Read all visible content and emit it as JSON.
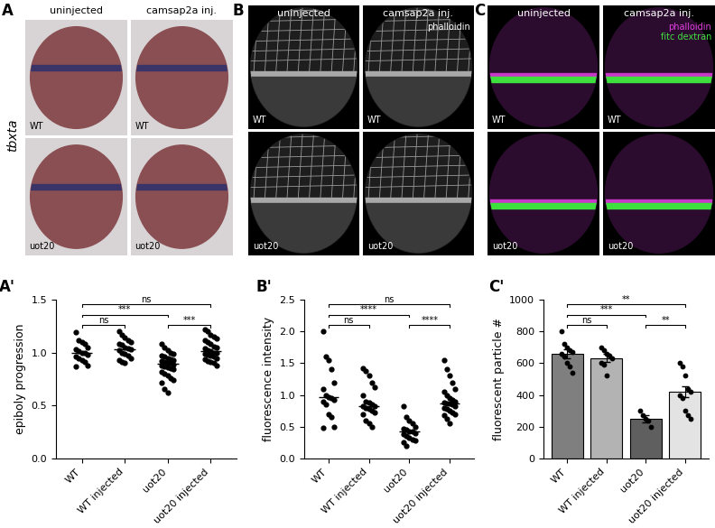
{
  "image_panels": [
    {
      "label": "A",
      "side_label": "tbxta",
      "column_titles": [
        "uninjected",
        "camsap2a inj."
      ],
      "row_labels": [
        "WT",
        "uot20"
      ]
    },
    {
      "label": "B",
      "column_titles": [
        "uninjected",
        "camsap2a inj."
      ],
      "row_labels": [
        "WT",
        "uot20"
      ],
      "stain_labels": [
        {
          "text": "phalloidin",
          "color": "#ffffff"
        }
      ]
    },
    {
      "label": "C",
      "column_titles": [
        "uninjected",
        "camsap2a inj."
      ],
      "row_labels": [
        "WT",
        "uot20"
      ],
      "stain_labels": [
        {
          "text": "phalloidin",
          "color": "#e040e0"
        },
        {
          "text": "fitc dextran",
          "color": "#40e040"
        }
      ]
    }
  ],
  "chart_data": [
    {
      "type": "strip",
      "panel": "A'",
      "y_label": "epiboly progression",
      "categories": [
        "WT",
        "WT injected",
        "uot20",
        "uot20 injected"
      ],
      "color": "#000000",
      "points": [
        [
          1.19,
          1.12,
          1.1,
          1.08,
          1.05,
          1.03,
          1.01,
          1.0,
          1.0,
          0.98,
          0.96,
          0.95,
          0.93,
          0.91,
          0.88,
          0.87
        ],
        [
          1.2,
          1.17,
          1.14,
          1.12,
          1.1,
          1.08,
          1.07,
          1.05,
          1.04,
          1.03,
          1.02,
          1.0,
          0.99,
          0.97,
          0.95,
          0.93,
          0.91,
          0.9
        ],
        [
          1.08,
          1.05,
          1.02,
          1.0,
          0.99,
          0.97,
          0.96,
          0.95,
          0.94,
          0.93,
          0.92,
          0.91,
          0.9,
          0.9,
          0.89,
          0.88,
          0.87,
          0.86,
          0.85,
          0.84,
          0.82,
          0.8,
          0.78,
          0.76,
          0.74,
          0.72,
          0.66,
          0.62
        ],
        [
          1.22,
          1.2,
          1.17,
          1.15,
          1.13,
          1.12,
          1.1,
          1.08,
          1.06,
          1.05,
          1.04,
          1.02,
          1.01,
          1.0,
          1.0,
          0.99,
          0.98,
          0.97,
          0.96,
          0.95,
          0.94,
          0.92,
          0.91,
          0.9,
          0.88
        ]
      ],
      "ylim": [
        0.0,
        1.5
      ],
      "yticks": [
        0.0,
        0.5,
        1.0,
        1.5
      ],
      "comparisons": [
        {
          "groups": [
            "WT",
            "WT injected"
          ],
          "label": "ns"
        },
        {
          "groups": [
            "uot20",
            "uot20 injected"
          ],
          "label": "***"
        },
        {
          "groups": [
            "WT",
            "uot20"
          ],
          "label": "***"
        },
        {
          "groups": [
            "WT",
            "uot20 injected"
          ],
          "label": "ns"
        }
      ]
    },
    {
      "type": "strip",
      "panel": "B'",
      "y_label": "fluorescence intensity",
      "categories": [
        "WT",
        "WT injected",
        "uot20",
        "uot20 injected"
      ],
      "color": "#000000",
      "points": [
        [
          2.0,
          1.6,
          1.55,
          1.4,
          1.2,
          1.1,
          1.0,
          0.97,
          0.95,
          0.93,
          0.9,
          0.85,
          0.7,
          0.65,
          0.5,
          0.48
        ],
        [
          1.42,
          1.38,
          1.3,
          1.2,
          1.12,
          1.0,
          0.9,
          0.88,
          0.85,
          0.83,
          0.82,
          0.8,
          0.78,
          0.75,
          0.72,
          0.7,
          0.6,
          0.55,
          0.5
        ],
        [
          0.82,
          0.65,
          0.6,
          0.55,
          0.5,
          0.47,
          0.45,
          0.43,
          0.42,
          0.4,
          0.38,
          0.36,
          0.33,
          0.3,
          0.28,
          0.25,
          0.2
        ],
        [
          1.55,
          1.4,
          1.3,
          1.2,
          1.1,
          1.05,
          1.0,
          0.95,
          0.92,
          0.9,
          0.88,
          0.87,
          0.86,
          0.85,
          0.82,
          0.8,
          0.78,
          0.75,
          0.72,
          0.7,
          0.68,
          0.62,
          0.55
        ]
      ],
      "ylim": [
        0.0,
        2.5
      ],
      "yticks": [
        0.0,
        0.5,
        1.0,
        1.5,
        2.0,
        2.5
      ],
      "comparisons": [
        {
          "groups": [
            "WT",
            "WT injected"
          ],
          "label": "ns"
        },
        {
          "groups": [
            "uot20",
            "uot20 injected"
          ],
          "label": "****"
        },
        {
          "groups": [
            "WT",
            "uot20"
          ],
          "label": "****"
        },
        {
          "groups": [
            "WT",
            "uot20 injected"
          ],
          "label": "ns"
        }
      ]
    },
    {
      "type": "bar",
      "panel": "C'",
      "y_label": "fluorescent particle #",
      "categories": [
        "WT",
        "WT injected",
        "uot20",
        "uot20 injected"
      ],
      "values": [
        660,
        632,
        250,
        422
      ],
      "errors": [
        30,
        25,
        20,
        35
      ],
      "colors": [
        "#7f7f7f",
        "#b3b3b3",
        "#5f5f5f",
        "#e3e3e3"
      ],
      "points": [
        [
          800,
          720,
          700,
          680,
          670,
          660,
          640,
          600,
          580,
          540
        ],
        [
          700,
          680,
          660,
          650,
          630,
          600,
          590,
          520
        ],
        [
          300,
          270,
          250,
          240,
          200
        ],
        [
          600,
          580,
          520,
          440,
          420,
          400,
          380,
          300,
          270,
          250
        ]
      ],
      "ylim": [
        0,
        1000
      ],
      "yticks": [
        0,
        200,
        400,
        600,
        800,
        1000
      ],
      "comparisons": [
        {
          "groups": [
            "WT",
            "WT injected"
          ],
          "label": "ns"
        },
        {
          "groups": [
            "uot20",
            "uot20 injected"
          ],
          "label": "**"
        },
        {
          "groups": [
            "WT",
            "uot20"
          ],
          "label": "***"
        },
        {
          "groups": [
            "WT",
            "uot20 injected"
          ],
          "label": "**"
        }
      ]
    }
  ]
}
